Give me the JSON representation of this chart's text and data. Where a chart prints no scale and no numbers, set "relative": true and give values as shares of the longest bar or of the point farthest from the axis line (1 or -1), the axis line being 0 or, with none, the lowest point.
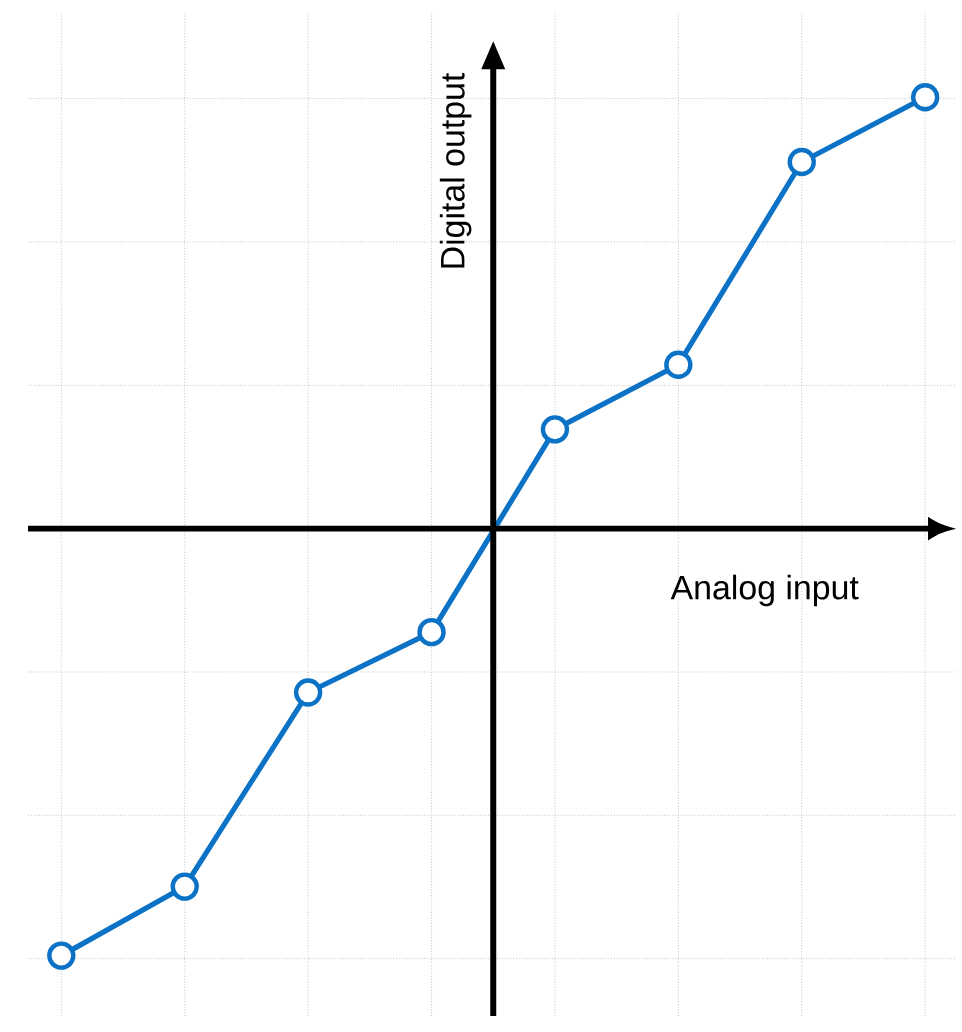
{
  "chart_data": {
    "type": "line",
    "xlabel": "Analog input",
    "ylabel": "Digital output",
    "relative": true,
    "categories": [
      null,
      null,
      null,
      null,
      null,
      null,
      null,
      null
    ],
    "series": [
      {
        "color": "#0b72c6",
        "values": [
          -0.99,
          -0.83,
          -0.38,
          -0.24,
          0.23,
          0.38,
          0.85,
          1
        ]
      }
    ],
    "marker": "circle",
    "line_style": "solid",
    "grid": true,
    "legend": false
  }
}
